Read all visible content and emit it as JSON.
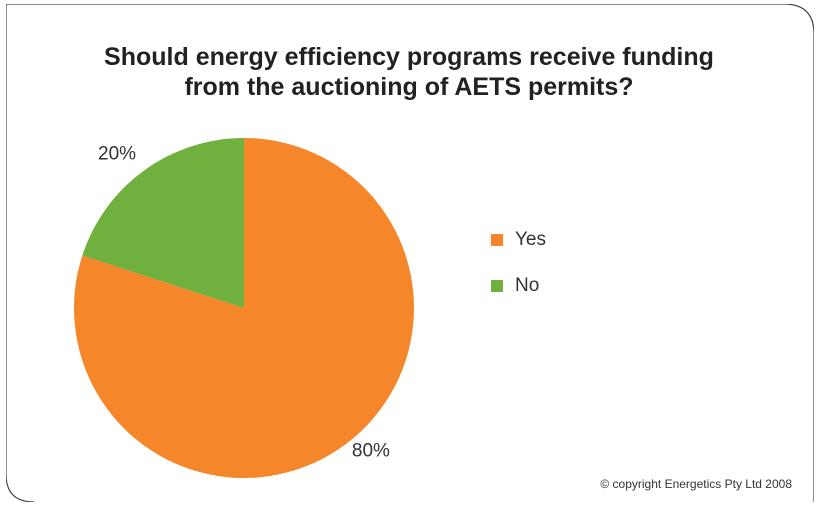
{
  "chart_data": {
    "type": "pie",
    "title": "Should energy efficiency programs receive funding from the auctioning of AETS permits?",
    "title_lines": [
      "Should energy efficiency programs receive funding",
      "from the auctioning of AETS permits?"
    ],
    "categories": [
      "Yes",
      "No"
    ],
    "values": [
      80,
      20
    ],
    "labels": [
      "80%",
      "20%"
    ],
    "colors": [
      "#f5862a",
      "#70b03f"
    ],
    "legend_position": "right"
  },
  "legend": {
    "items": [
      {
        "label": "Yes",
        "color": "#f5862a"
      },
      {
        "label": "No",
        "color": "#70b03f"
      }
    ]
  },
  "footer": {
    "copyright": "© copyright Energetics Pty Ltd 2008"
  }
}
